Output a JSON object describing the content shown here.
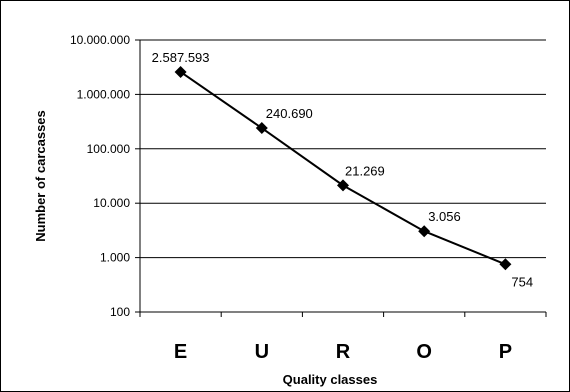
{
  "chart_data": {
    "type": "line",
    "title": "",
    "xlabel": "Quality classes",
    "ylabel": "Number of carcasses",
    "y_scale": "log",
    "ylim": [
      100,
      10000000
    ],
    "y_ticks": [
      {
        "value": 100,
        "label": "100"
      },
      {
        "value": 1000,
        "label": "1.000"
      },
      {
        "value": 10000,
        "label": "10.000"
      },
      {
        "value": 100000,
        "label": "100.000"
      },
      {
        "value": 1000000,
        "label": "1.000.000"
      },
      {
        "value": 10000000,
        "label": "10.000.000"
      }
    ],
    "grid": "horizontal",
    "legend": "none",
    "categories": [
      "E",
      "U",
      "R",
      "O",
      "P"
    ],
    "series": [
      {
        "values": [
          2587593,
          240690,
          21269,
          3056,
          754
        ],
        "data_labels": [
          "2.587.593",
          "240.690",
          "21.269",
          "3.056",
          "754"
        ],
        "color": "#000000",
        "marker": "diamond"
      }
    ]
  }
}
